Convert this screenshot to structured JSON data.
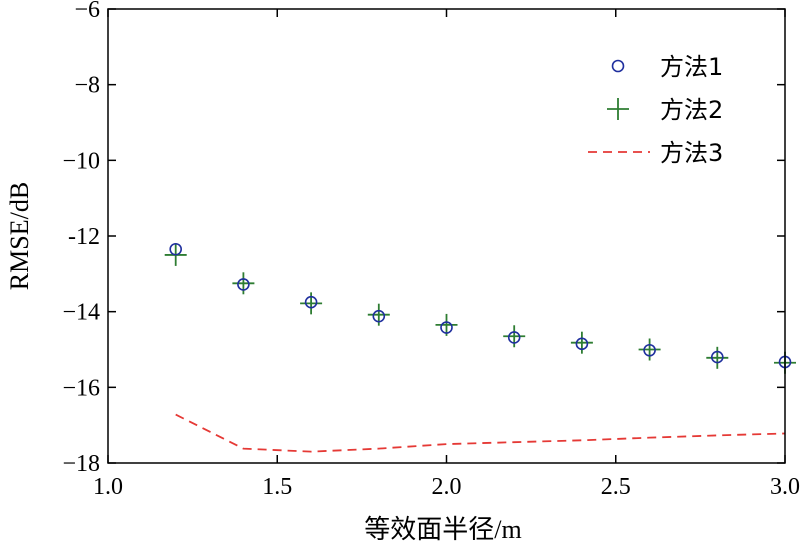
{
  "chart_data": {
    "type": "scatter",
    "xlabel": "等效面半径/m",
    "ylabel": "RMSE/dB",
    "xlim": [
      1.0,
      3.0
    ],
    "ylim": [
      -18,
      -6
    ],
    "xticks": [
      1.0,
      1.5,
      2.0,
      2.5,
      3.0
    ],
    "xtick_labels": [
      "1.0",
      "1.5",
      "2.0",
      "2.5",
      "3.0"
    ],
    "yticks": [
      -18,
      -16,
      -14,
      -12,
      -10,
      -8,
      -6
    ],
    "ytick_labels": [
      "−18",
      "−16",
      "−14",
      "-12",
      "−10",
      "−8",
      "−6"
    ],
    "grid": false,
    "legend_position": "top-right",
    "series": [
      {
        "name": "方法1",
        "marker": "circle",
        "color": "#1f2f9e",
        "x": [
          1.2,
          1.4,
          1.6,
          1.8,
          2.0,
          2.2,
          2.4,
          2.6,
          2.8,
          3.0
        ],
        "y": [
          -12.35,
          -13.28,
          -13.75,
          -14.12,
          -14.42,
          -14.68,
          -14.85,
          -15.02,
          -15.2,
          -15.33
        ]
      },
      {
        "name": "方法2",
        "marker": "plus",
        "color": "#2e7d32",
        "x": [
          1.2,
          1.4,
          1.6,
          1.8,
          2.0,
          2.2,
          2.4,
          2.6,
          2.8,
          3.0
        ],
        "y": [
          -12.5,
          -13.25,
          -13.78,
          -14.08,
          -14.35,
          -14.65,
          -14.82,
          -15.0,
          -15.22,
          -15.35
        ]
      },
      {
        "name": "方法3",
        "marker": "dashed-line",
        "color": "#e53935",
        "x": [
          1.2,
          1.4,
          1.6,
          1.8,
          2.0,
          2.2,
          2.4,
          2.6,
          2.8,
          3.0
        ],
        "y": [
          -16.72,
          -17.62,
          -17.7,
          -17.62,
          -17.5,
          -17.45,
          -17.4,
          -17.33,
          -17.27,
          -17.22
        ]
      }
    ]
  }
}
